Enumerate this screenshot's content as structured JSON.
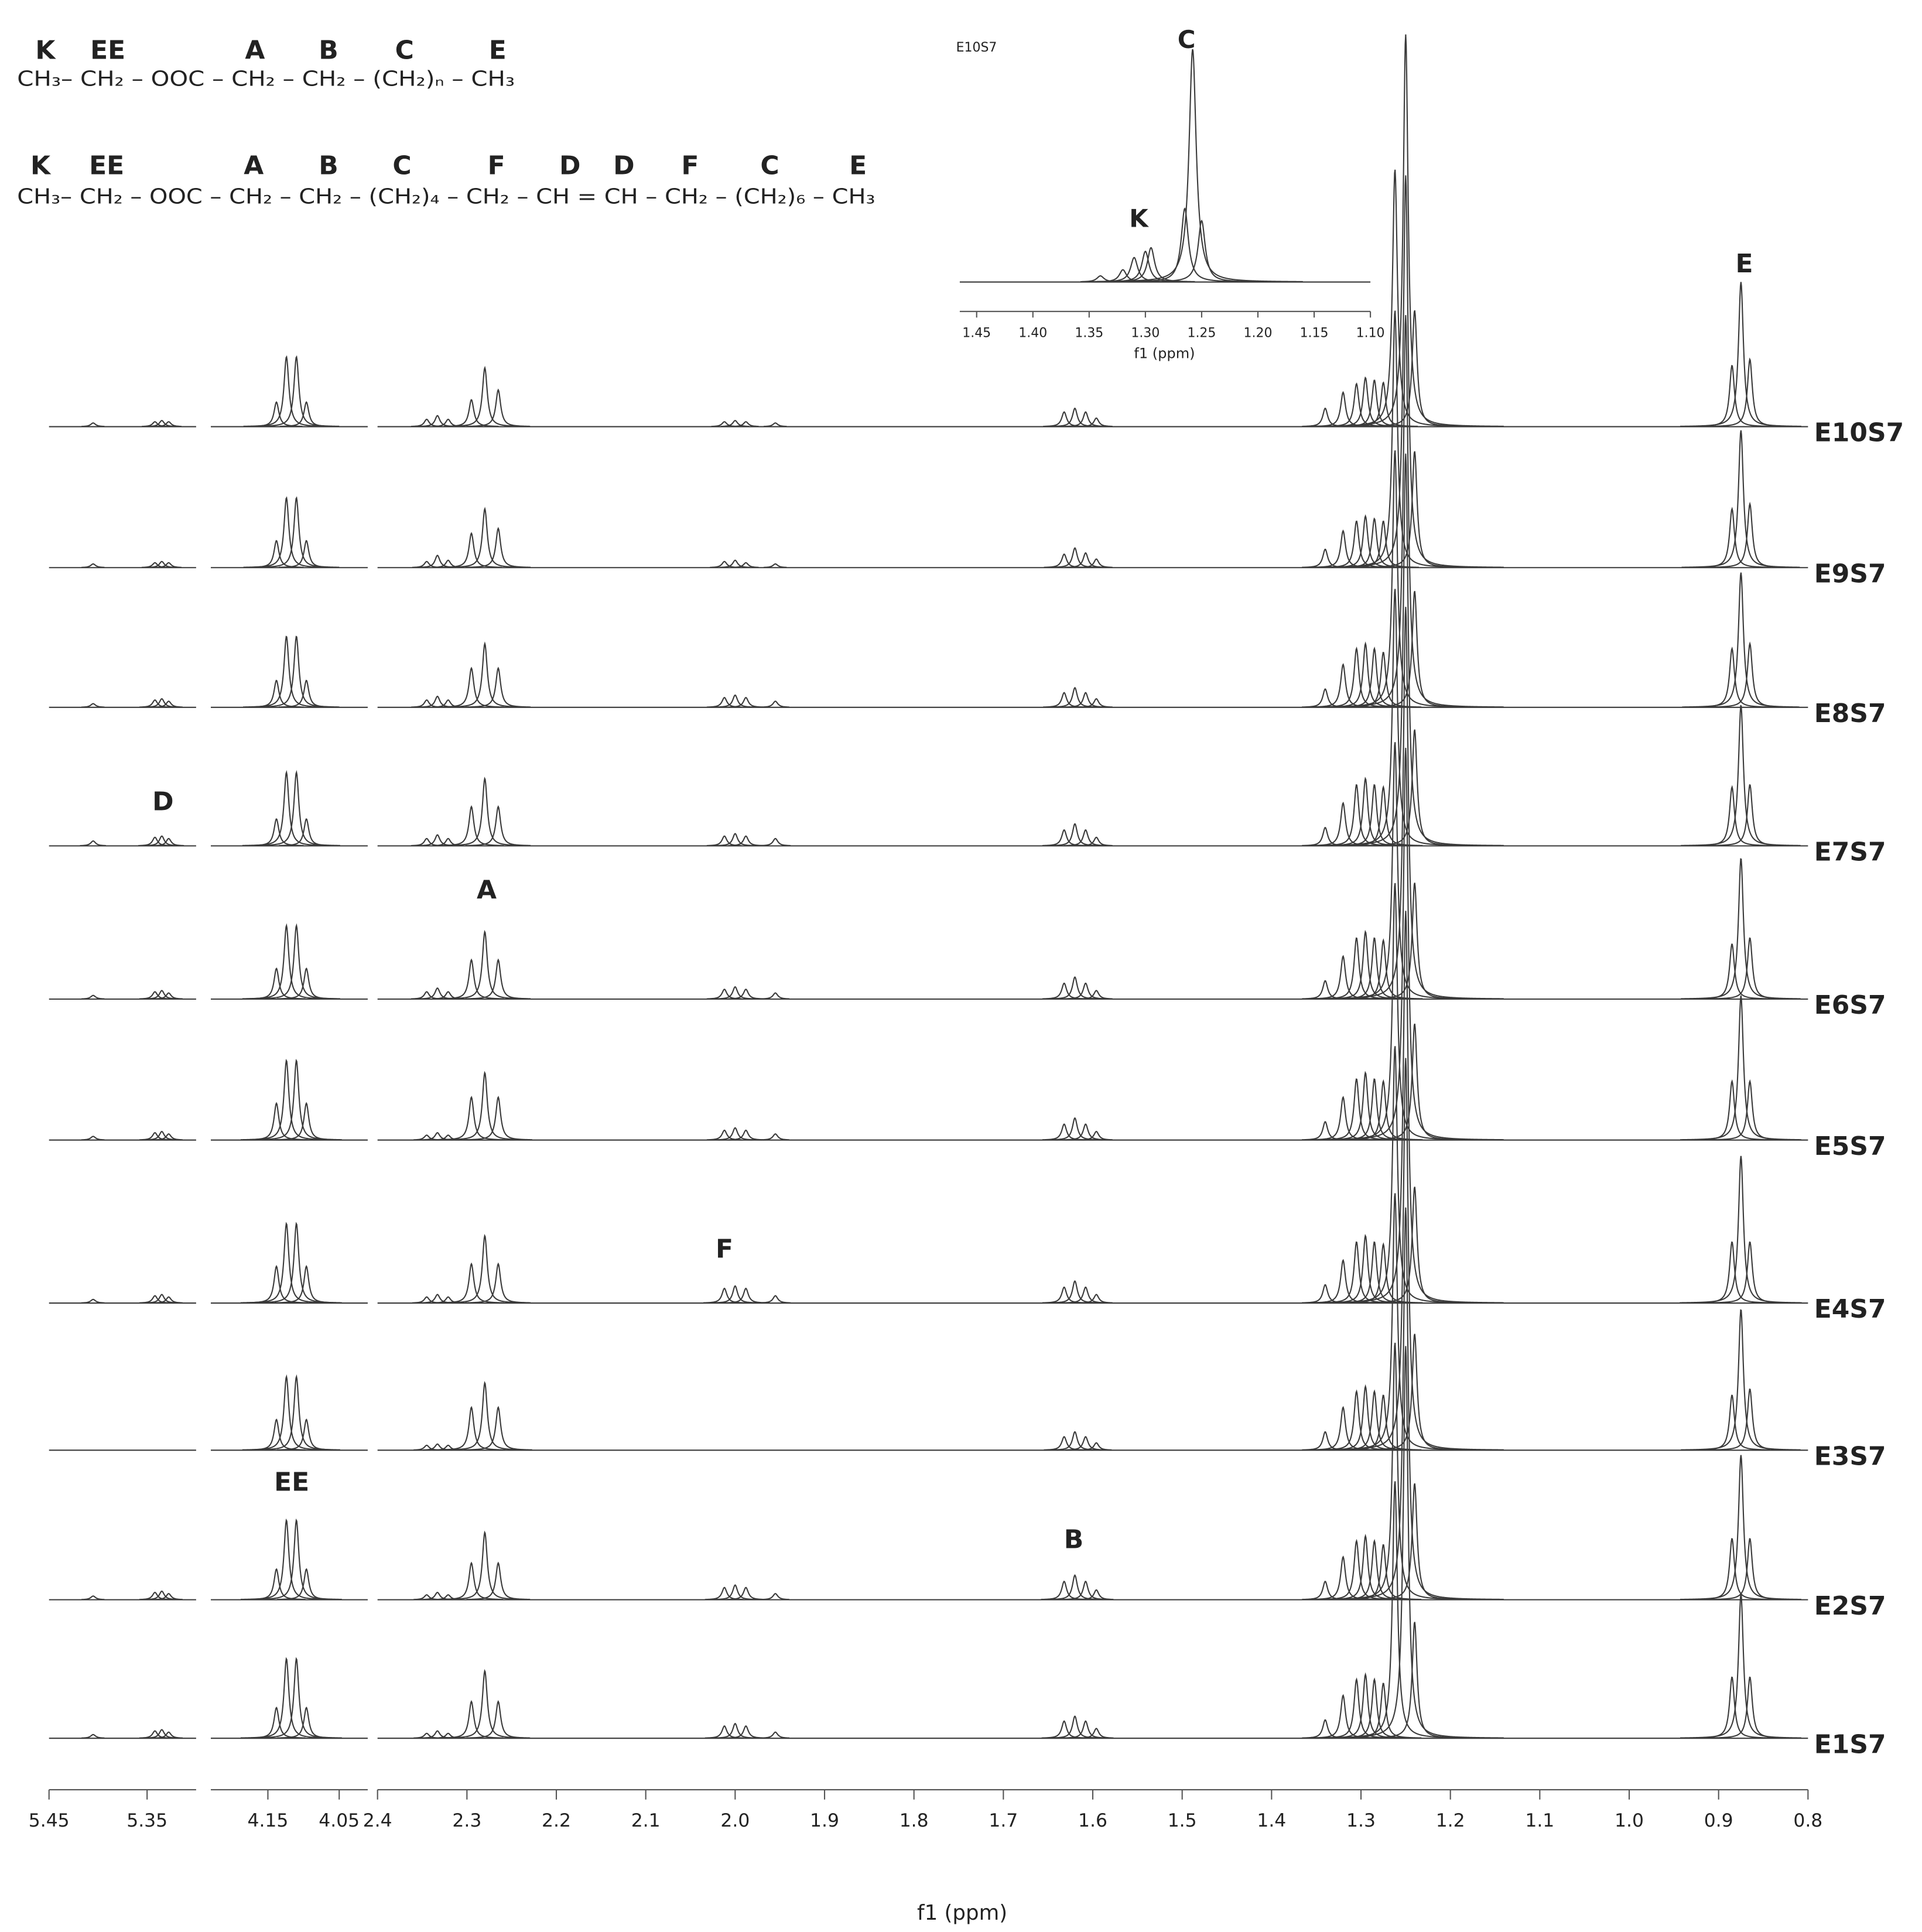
{
  "formulas": [
    {
      "labels": [
        "K",
        "EE",
        "A",
        "B",
        "C",
        "E"
      ],
      "text": "CH₃– CH₂ – OOC – CH₂ – CH₂ – (CH₂)ₙ – CH₃"
    },
    {
      "labels": [
        "K",
        "EE",
        "A",
        "B",
        "C",
        "F",
        "D",
        "D",
        "F",
        "C",
        "E"
      ],
      "text": "CH₃– CH₂ – OOC – CH₂ – CH₂ – (CH₂)₄ – CH₂ – CH = CH – CH₂ – (CH₂)₆ – CH₃"
    }
  ],
  "chart_data": [
    {
      "type": "nmr",
      "xlabel": "f1 (ppm)",
      "color": "#3a3a3a",
      "segments": [
        {
          "xlim": [
            5.45,
            5.3
          ],
          "xticks": [
            5.45,
            5.35
          ]
        },
        {
          "xlim": [
            4.23,
            4.01
          ],
          "xticks": [
            4.15,
            4.05
          ]
        },
        {
          "xlim": [
            2.4,
            0.8
          ],
          "xticks": [
            2.4,
            2.3,
            2.2,
            2.1,
            {
              "value": 2,
              "label": "2.0"
            },
            1.9,
            1.8,
            1.7,
            1.6,
            1.5,
            1.4,
            1.3,
            1.2,
            1.1,
            {
              "value": 1,
              "label": "1.0"
            },
            0.9,
            0.8
          ]
        }
      ],
      "x": [
        5.405,
        5.342,
        5.335,
        5.328,
        4.138,
        4.124,
        4.11,
        4.096,
        2.345,
        2.333,
        2.321,
        2.295,
        2.28,
        2.265,
        2.012,
        2.0,
        1.988,
        1.955,
        1.632,
        1.62,
        1.608,
        1.596,
        1.34,
        1.32,
        1.305,
        1.295,
        1.285,
        1.275,
        1.262,
        1.25,
        1.24,
        0.885,
        0.875,
        0.865
      ],
      "series": [
        {
          "name": "E10S7",
          "values": [
            3,
            4,
            5,
            4,
            20,
            57,
            57,
            20,
            6,
            9,
            6,
            22,
            48,
            30,
            4,
            5,
            4,
            3,
            12,
            15,
            12,
            7,
            15,
            28,
            35,
            40,
            38,
            36,
            210,
            320,
            95,
            50,
            118,
            55
          ]
        },
        {
          "name": "E9S7",
          "values": [
            3,
            4,
            5,
            4,
            22,
            57,
            57,
            22,
            5,
            10,
            6,
            28,
            48,
            32,
            5,
            6,
            4,
            3,
            11,
            16,
            12,
            7,
            15,
            30,
            38,
            42,
            40,
            38,
            210,
            320,
            95,
            48,
            112,
            52
          ]
        },
        {
          "name": "E8S7",
          "values": [
            3,
            6,
            7,
            5,
            22,
            58,
            58,
            22,
            6,
            9,
            6,
            32,
            52,
            32,
            8,
            10,
            8,
            5,
            12,
            16,
            12,
            7,
            15,
            35,
            48,
            52,
            48,
            45,
            210,
            320,
            95,
            48,
            110,
            52
          ]
        },
        {
          "name": "E7S7",
          "values": [
            4,
            7,
            8,
            6,
            22,
            60,
            60,
            22,
            6,
            9,
            6,
            32,
            55,
            32,
            8,
            10,
            8,
            6,
            13,
            18,
            13,
            7,
            15,
            35,
            50,
            55,
            50,
            48,
            210,
            320,
            95,
            48,
            115,
            50
          ]
        },
        {
          "name": "E6S7",
          "values": [
            3,
            6,
            7,
            5,
            25,
            60,
            60,
            25,
            6,
            9,
            6,
            32,
            55,
            32,
            8,
            10,
            8,
            5,
            13,
            18,
            13,
            7,
            15,
            35,
            50,
            55,
            50,
            48,
            210,
            320,
            95,
            45,
            115,
            50
          ]
        },
        {
          "name": "E5S7",
          "values": [
            3,
            6,
            7,
            5,
            30,
            65,
            65,
            30,
            4,
            6,
            4,
            35,
            55,
            35,
            8,
            10,
            8,
            5,
            13,
            18,
            13,
            7,
            15,
            35,
            50,
            55,
            50,
            48,
            210,
            320,
            95,
            48,
            118,
            48
          ]
        },
        {
          "name": "E4S7",
          "values": [
            3,
            6,
            7,
            5,
            30,
            65,
            65,
            30,
            5,
            7,
            5,
            32,
            55,
            32,
            12,
            14,
            12,
            6,
            13,
            18,
            13,
            7,
            15,
            35,
            50,
            55,
            50,
            48,
            210,
            320,
            95,
            50,
            120,
            50
          ]
        },
        {
          "name": "E3S7",
          "values": [
            null,
            null,
            null,
            null,
            25,
            60,
            60,
            25,
            4,
            5,
            4,
            35,
            55,
            35,
            null,
            null,
            null,
            null,
            11,
            15,
            11,
            6,
            15,
            35,
            48,
            52,
            48,
            45,
            210,
            320,
            95,
            45,
            115,
            50
          ]
        },
        {
          "name": "E2S7",
          "values": [
            3,
            6,
            7,
            5,
            25,
            65,
            65,
            25,
            4,
            6,
            4,
            30,
            55,
            30,
            10,
            12,
            10,
            5,
            15,
            20,
            15,
            8,
            15,
            35,
            48,
            52,
            48,
            45,
            210,
            320,
            95,
            50,
            118,
            50
          ]
        },
        {
          "name": "E1S7",
          "values": [
            3,
            6,
            7,
            5,
            25,
            65,
            65,
            25,
            4,
            6,
            4,
            30,
            55,
            30,
            10,
            12,
            10,
            5,
            14,
            18,
            14,
            8,
            15,
            35,
            48,
            52,
            48,
            45,
            210,
            320,
            95,
            50,
            118,
            50
          ]
        }
      ],
      "annotations": [
        "E",
        "D",
        "A",
        "F",
        "EE",
        "B"
      ]
    },
    {
      "type": "nmr",
      "title": "E10S7",
      "xlabel": "f1 (ppm)",
      "color": "#3a3a3a",
      "segments": [
        {
          "xlim": [
            1.465,
            1.1
          ],
          "xticks": [
            1.45,
            {
              "value": 1.4,
              "label": "1.40"
            },
            1.35,
            {
              "value": 1.3,
              "label": "1.30"
            },
            1.25,
            {
              "value": 1.2,
              "label": "1.20"
            },
            1.15,
            {
              "value": 1.1,
              "label": "1.10"
            }
          ]
        }
      ],
      "x": [
        1.34,
        1.32,
        1.31,
        1.3,
        1.295,
        1.265,
        1.258,
        1.25
      ],
      "series": [
        {
          "values": [
            5,
            10,
            20,
            25,
            28,
            60,
            190,
            50
          ]
        }
      ],
      "annotations": [
        "C",
        "K"
      ]
    }
  ]
}
